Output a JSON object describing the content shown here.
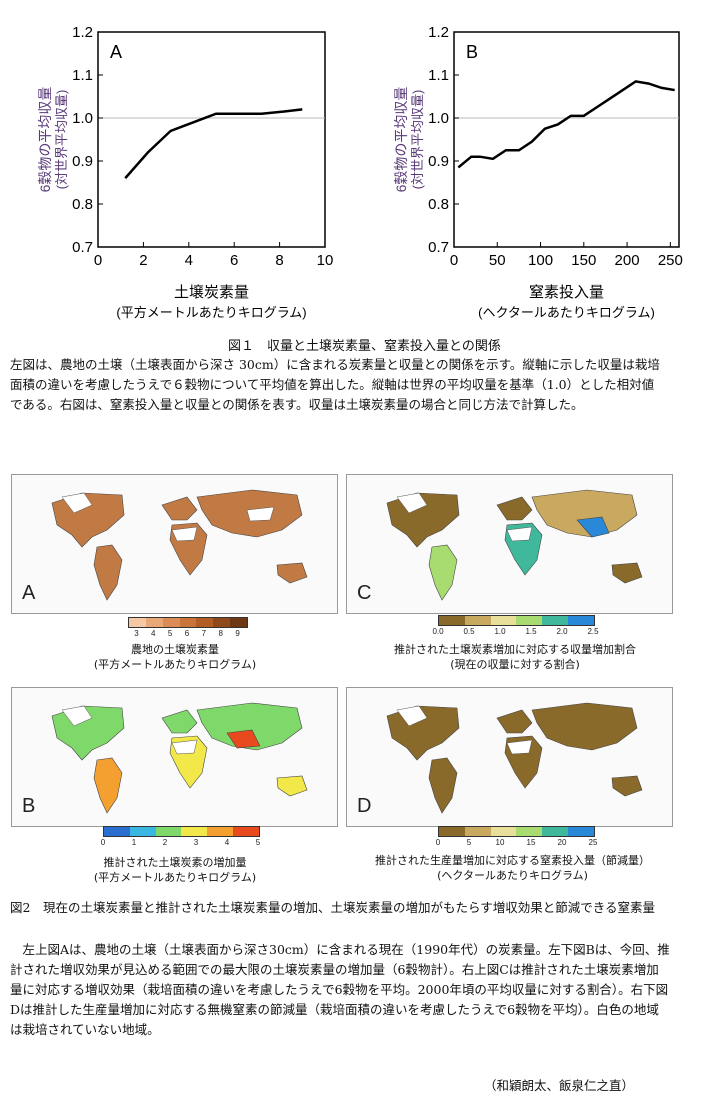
{
  "chart_data": [
    {
      "type": "line",
      "panel_label": "A",
      "ylabel": "6穀物の平均収量",
      "ylabel_sub": "(対世界平均収量)",
      "xlabel": "土壌炭素量",
      "xlabel_sub": "(平方メートルあたりキログラム)",
      "xlim": [
        0,
        10
      ],
      "ylim": [
        0.7,
        1.2
      ],
      "xticks": [
        0,
        2,
        4,
        6,
        8,
        10
      ],
      "yticks": [
        0.7,
        0.8,
        0.9,
        1.0,
        1.1,
        1.2
      ],
      "ytick_labels": [
        "0.7",
        "0.8",
        "0.9",
        "1.0",
        "1.1",
        "1.2"
      ],
      "reference_line": 1.0,
      "x": [
        1.2,
        2.2,
        3.2,
        4.2,
        5.2,
        6.2,
        7.2,
        8.2,
        9.0
      ],
      "y": [
        0.86,
        0.92,
        0.97,
        0.99,
        1.01,
        1.01,
        1.01,
        1.015,
        1.02
      ]
    },
    {
      "type": "line",
      "panel_label": "B",
      "ylabel": "6穀物の平均収量",
      "ylabel_sub": "(対世界平均収量)",
      "xlabel": "窒素投入量",
      "xlabel_sub": "(ヘクタールあたりキログラム)",
      "xlim": [
        0,
        260
      ],
      "ylim": [
        0.7,
        1.2
      ],
      "xticks": [
        0,
        50,
        100,
        150,
        200,
        250
      ],
      "yticks": [
        0.7,
        0.8,
        0.9,
        1.0,
        1.1,
        1.2
      ],
      "ytick_labels": [
        "0.7",
        "0.8",
        "0.9",
        "1.0",
        "1.1",
        "1.2"
      ],
      "reference_line": 1.0,
      "x": [
        5,
        20,
        30,
        45,
        60,
        75,
        90,
        105,
        120,
        135,
        150,
        165,
        180,
        195,
        210,
        225,
        240,
        255
      ],
      "y": [
        0.885,
        0.91,
        0.91,
        0.905,
        0.925,
        0.925,
        0.945,
        0.975,
        0.985,
        1.005,
        1.005,
        1.025,
        1.045,
        1.065,
        1.085,
        1.08,
        1.07,
        1.065
      ]
    }
  ],
  "figure1": {
    "caption_title": "図１　収量と土壌炭素量、窒素投入量との関係",
    "caption_body": "左図は、農地の土壌（土壌表面から深さ 30cm）に含まれる炭素量と収量との関係を示す。縦軸に示した収量は栽培面積の違いを考慮したうえで６穀物について平均値を算出した。縦軸は世界の平均収量を基準（1.0）とした相対値である。右図は、窒素投入量と収量との関係を表す。収量は土壌炭素量の場合と同じ方法で計算した。"
  },
  "maps": {
    "A": {
      "letter": "A",
      "colorbar_ticks": [
        "3",
        "4",
        "5",
        "6",
        "7",
        "8",
        "9"
      ],
      "colors": [
        "#f4c8a4",
        "#e8a878",
        "#d98c55",
        "#c97438",
        "#b05e26",
        "#8e4a1b",
        "#6d3814"
      ],
      "label": "農地の土壌炭素量",
      "label_sub": "(平方メートルあたりキログラム)"
    },
    "C": {
      "letter": "C",
      "colorbar_ticks": [
        "0.0",
        "0.5",
        "1.0",
        "1.5",
        "2.0",
        "2.5"
      ],
      "colors": [
        "#8a6a2a",
        "#c9a860",
        "#e8df9a",
        "#a8dc70",
        "#3fb89c",
        "#2a88d8"
      ],
      "label": "推計された土壌炭素増加に対応する収量増加割合",
      "label_sub": "(現在の収量に対する割合)"
    },
    "B": {
      "letter": "B",
      "colorbar_ticks": [
        "0",
        "1",
        "2",
        "3",
        "4",
        "5"
      ],
      "colors": [
        "#2a6fd0",
        "#38b8e0",
        "#7fd86a",
        "#f2e84a",
        "#f4a030",
        "#e84a1e"
      ],
      "label": "推計された土壌炭素の増加量",
      "label_sub": "(平方メートルあたりキログラム)"
    },
    "D": {
      "letter": "D",
      "colorbar_ticks": [
        "0",
        "5",
        "10",
        "15",
        "20",
        "25"
      ],
      "colors": [
        "#8a6a2a",
        "#c9a860",
        "#e8df9a",
        "#a8dc70",
        "#3fb89c",
        "#2a88d8"
      ],
      "label": "推計された生産量増加に対応する窒素投入量（節減量）",
      "label_sub": "(ヘクタールあたりキログラム)"
    }
  },
  "figure2": {
    "caption_title": "図2　現在の土壌炭素量と推計された土壌炭素量の増加、土壌炭素量の増加がもたらす増収効果と節減できる窒素量",
    "caption_body": "　左上図Aは、農地の土壌（土壌表面から深さ30cm）に含まれる現在（1990年代）の炭素量。左下図Bは、今回、推計された増収効果が見込める範囲での最大限の土壌炭素量の増加量（6穀物計）。右上図Cは推計された土壌炭素増加量に対応する増収効果（栽培面積の違いを考慮したうえで6穀物を平均。2000年頃の平均収量に対する割合）。右下図Dは推計した生産量増加に対応する無機窒素の節減量（栽培面積の違いを考慮したうえで6穀物を平均）。白色の地域は栽培されていない地域。"
  },
  "authors": "（和穎朗太、飯泉仁之直）"
}
